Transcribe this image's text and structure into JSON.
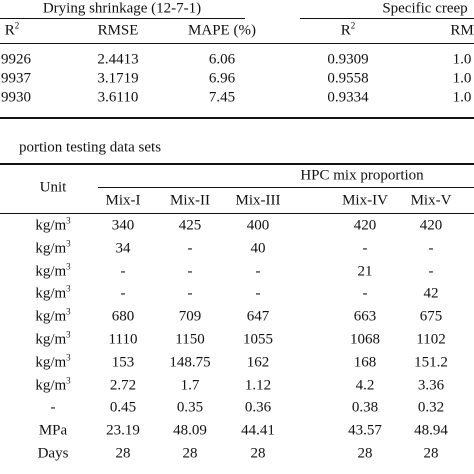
{
  "top_table": {
    "group_headers": [
      "Drying shrinkage (12-7-1)",
      "Specific creep"
    ],
    "columns": [
      {
        "base": "R",
        "sup": "2"
      },
      "RMSE",
      "MAPE (%)",
      {
        "base": "R",
        "sup": "2"
      },
      "RM"
    ],
    "rows": [
      [
        "9926",
        "2.4413",
        "6.06",
        "0.9309",
        "1.0"
      ],
      [
        "9937",
        "3.1719",
        "6.96",
        "0.9558",
        "1.0"
      ],
      [
        "9930",
        "3.6110",
        "7.45",
        "0.9334",
        "1.0"
      ]
    ]
  },
  "caption": "portion testing data sets",
  "mix_table": {
    "unit_header": "Unit",
    "group_header": "HPC mix proportion",
    "columns": [
      "Mix-I",
      "Mix-II",
      "Mix-III",
      "Mix-IV",
      "Mix-V"
    ],
    "rows": [
      {
        "unit": {
          "base": "kg/m",
          "sup": "3"
        },
        "values": [
          "340",
          "425",
          "400",
          "420",
          "420"
        ]
      },
      {
        "unit": {
          "base": "kg/m",
          "sup": "3"
        },
        "values": [
          "34",
          "-",
          "40",
          "-",
          "-"
        ]
      },
      {
        "unit": {
          "base": "kg/m",
          "sup": "3"
        },
        "values": [
          "-",
          "-",
          "-",
          "21",
          "-"
        ]
      },
      {
        "unit": {
          "base": "kg/m",
          "sup": "3"
        },
        "values": [
          "-",
          "-",
          "-",
          "-",
          "42"
        ]
      },
      {
        "unit": {
          "base": "kg/m",
          "sup": "3"
        },
        "values": [
          "680",
          "709",
          "647",
          "663",
          "675"
        ]
      },
      {
        "unit": {
          "base": "kg/m",
          "sup": "3"
        },
        "values": [
          "1110",
          "1150",
          "1055",
          "1068",
          "1102"
        ]
      },
      {
        "unit": {
          "base": "kg/m",
          "sup": "3"
        },
        "values": [
          "153",
          "148.75",
          "162",
          "168",
          "151.2"
        ]
      },
      {
        "unit": {
          "base": "kg/m",
          "sup": "3"
        },
        "values": [
          "2.72",
          "1.7",
          "1.12",
          "4.2",
          "3.36"
        ]
      },
      {
        "unit": "-",
        "values": [
          "0.45",
          "0.35",
          "0.36",
          "0.38",
          "0.32"
        ]
      },
      {
        "unit": "MPa",
        "values": [
          "23.19",
          "48.09",
          "44.41",
          "43.57",
          "48.94"
        ]
      },
      {
        "unit": "Days",
        "values": [
          "28",
          "28",
          "28",
          "28",
          "28"
        ]
      }
    ]
  }
}
